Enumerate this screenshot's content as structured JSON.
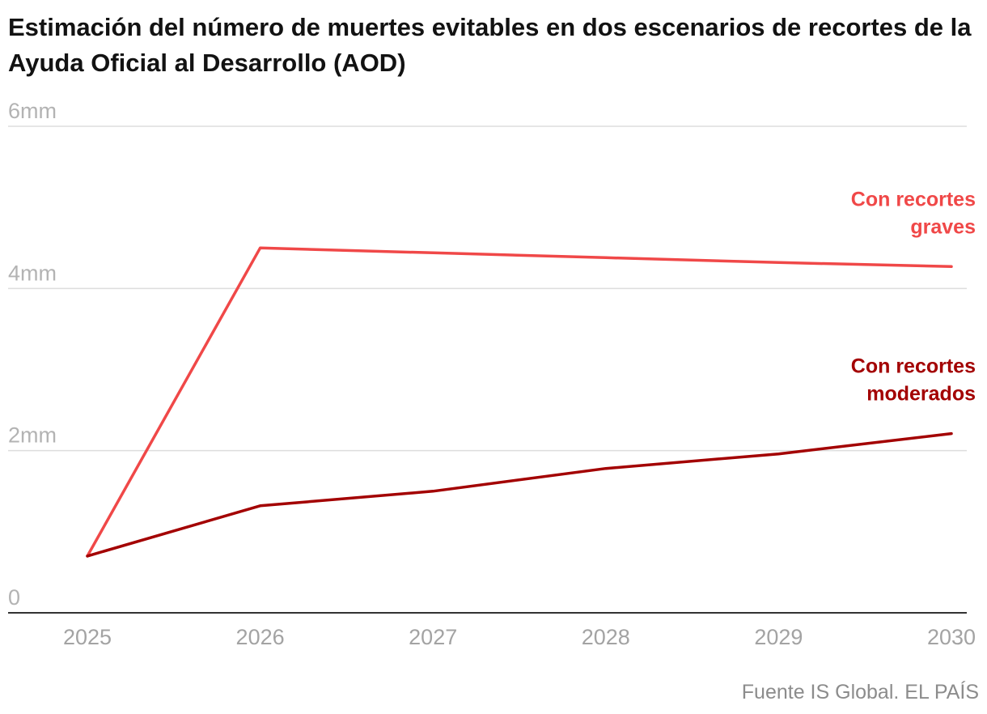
{
  "title": "Estimación del número de muertes evitables en dos escenarios de recortes de la Ayuda Oficial al Desarrollo (AOD)",
  "source": "Fuente IS Global. EL PAÍS",
  "colors": {
    "grid": "#dddddd",
    "axis": "#333333",
    "text_gray": "#a3a3a3"
  },
  "chart_data": {
    "type": "line",
    "title": "Estimación del número de muertes evitables en dos escenarios de recortes de la Ayuda Oficial al Desarrollo (AOD)",
    "xlabel": "",
    "ylabel": "",
    "x": [
      2025,
      2026,
      2027,
      2028,
      2029,
      2030
    ],
    "x_tick_labels": [
      "2025",
      "2026",
      "2027",
      "2028",
      "2029",
      "2030"
    ],
    "ylim": [
      0,
      6
    ],
    "y_ticks": [
      0,
      2,
      4,
      6
    ],
    "y_tick_labels": [
      "0",
      "2mm",
      "4mm",
      "6mm"
    ],
    "grid": true,
    "series": [
      {
        "name": "Con recortes graves",
        "label_lines": [
          "Con recortes",
          "graves"
        ],
        "color": "#f04848",
        "values": [
          0.7,
          4.5,
          4.44,
          4.38,
          4.32,
          4.27
        ]
      },
      {
        "name": "Con recortes moderados",
        "label_lines": [
          "Con recortes",
          "moderados"
        ],
        "color": "#a30000",
        "values": [
          0.7,
          1.32,
          1.5,
          1.78,
          1.96,
          2.21
        ]
      }
    ]
  }
}
